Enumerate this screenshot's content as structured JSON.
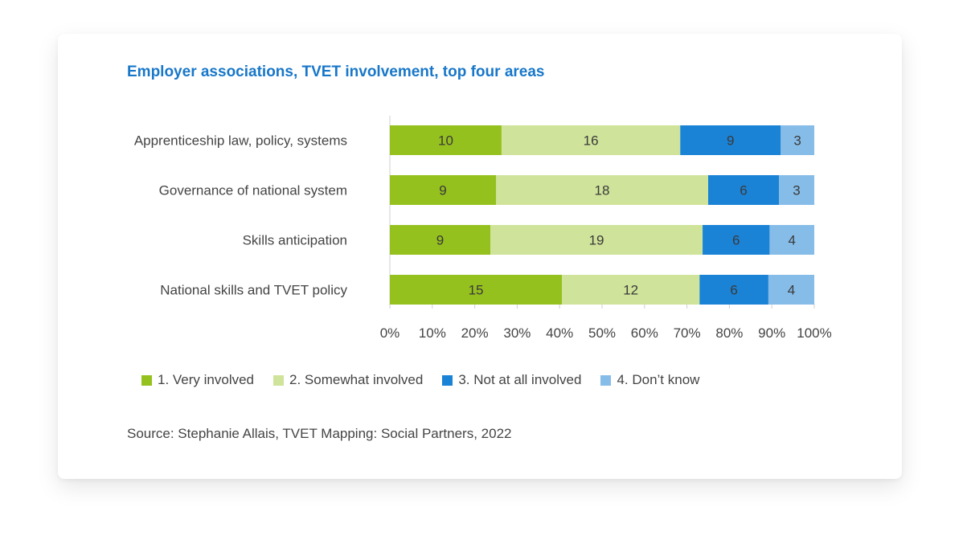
{
  "chart_data": {
    "type": "bar",
    "orientation": "horizontal",
    "stacked": "percent",
    "title": "Employer associations, TVET involvement, top four areas",
    "categories": [
      "Apprenticeship law, policy, systems",
      "Governance of national system",
      "Skills anticipation",
      "National skills and TVET policy"
    ],
    "series": [
      {
        "name": "1. Very involved",
        "color": "#95c11f",
        "values": [
          10,
          9,
          9,
          15
        ]
      },
      {
        "name": "2. Somewhat involved",
        "color": "#cfe39a",
        "values": [
          16,
          18,
          19,
          12
        ]
      },
      {
        "name": "3. Not at all involved",
        "color": "#1b83d6",
        "values": [
          9,
          6,
          6,
          6
        ]
      },
      {
        "name": "4. Don’t know",
        "color": "#86bce8",
        "values": [
          3,
          3,
          4,
          4
        ]
      }
    ],
    "xticks": [
      "0%",
      "10%",
      "20%",
      "30%",
      "40%",
      "50%",
      "60%",
      "70%",
      "80%",
      "90%",
      "100%"
    ],
    "xlim": [
      0,
      100
    ],
    "legend_position": "bottom",
    "grid": false,
    "source": "Source: Stephanie Allais, TVET Mapping: Social Partners, 2022"
  }
}
